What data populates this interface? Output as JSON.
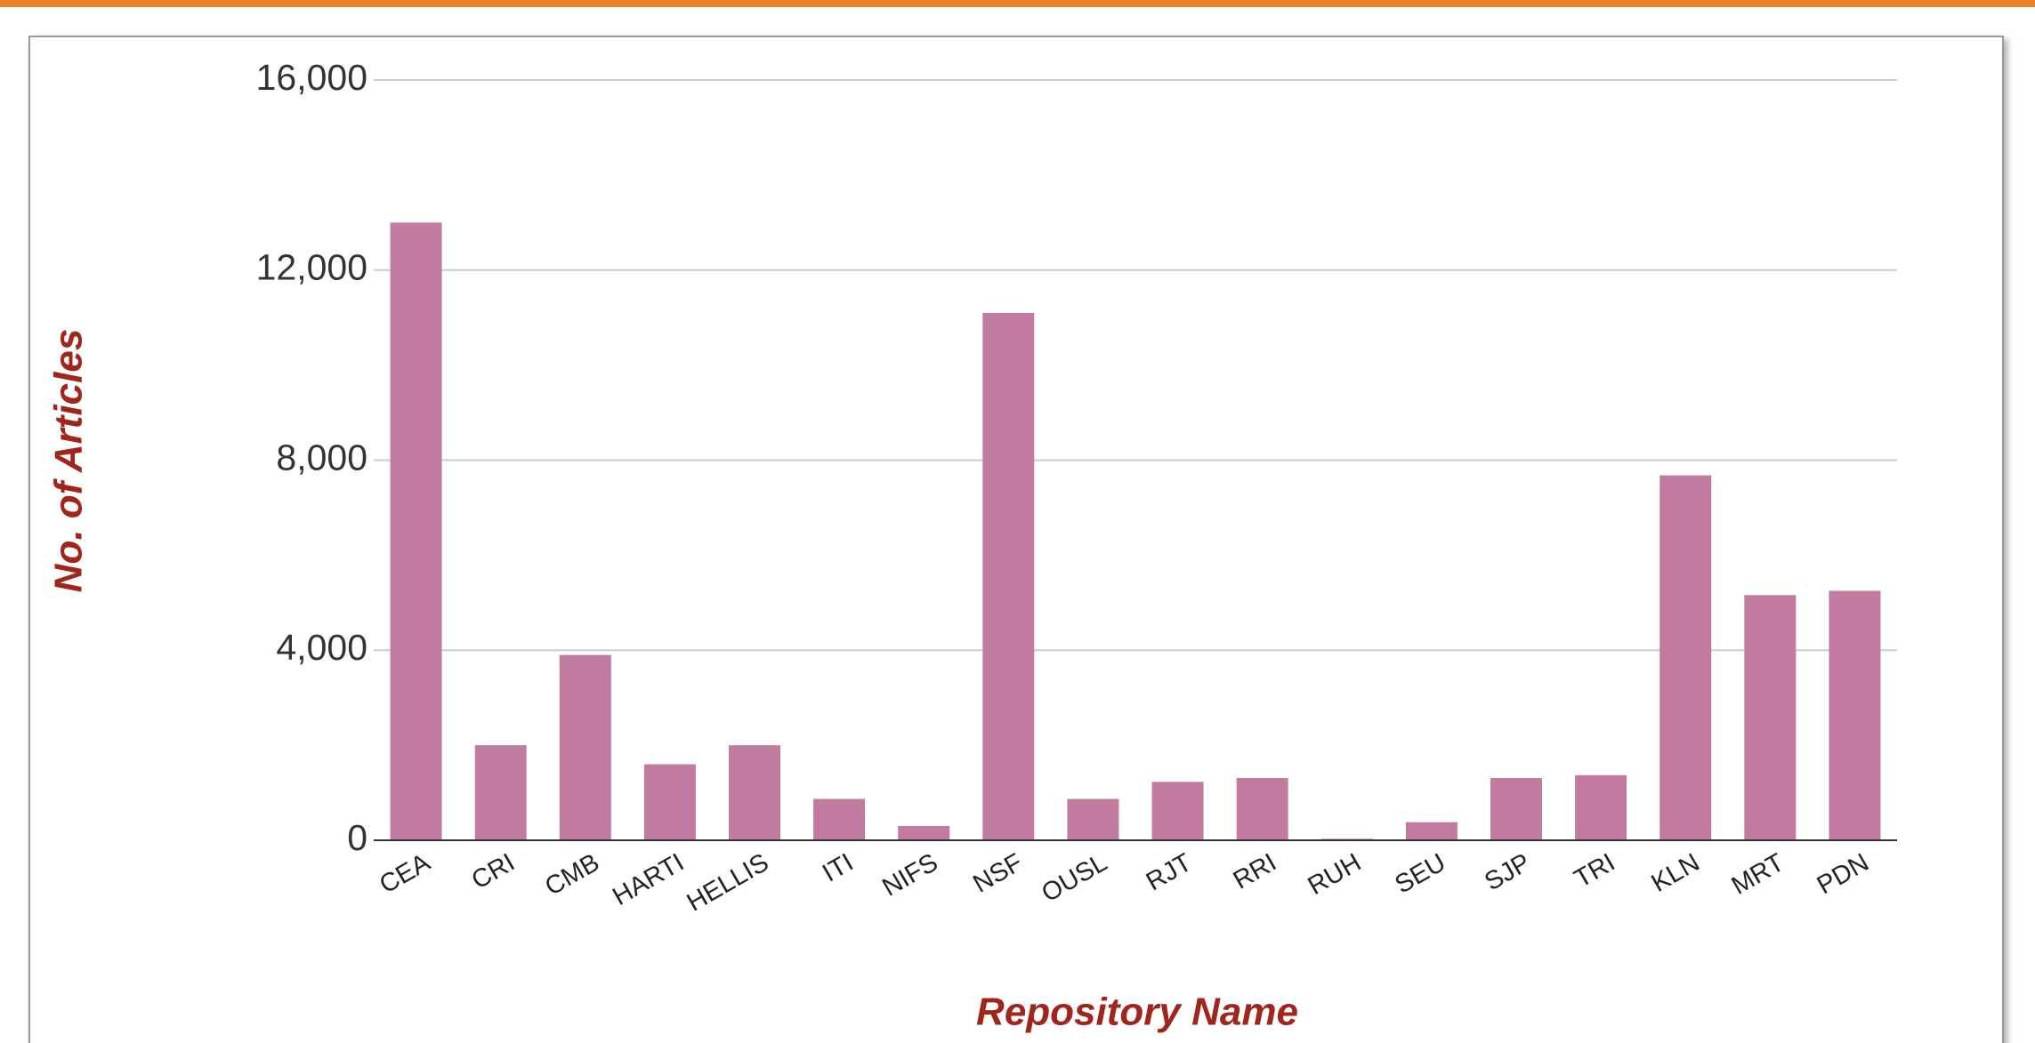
{
  "chart_data": {
    "type": "bar",
    "y_label": "No. of Articles",
    "x_label": "Repository Name",
    "categories": [
      "CEA",
      "CRI",
      "CMB",
      "HARTI",
      "HELLIS",
      "ITI",
      "NIFS",
      "NSF",
      "OUSL",
      "RJT",
      "RRI",
      "RUH",
      "SEU",
      "SJP",
      "TRI",
      "KLN",
      "MRT",
      "PDN"
    ],
    "values": [
      13000,
      2000,
      3900,
      1600,
      2000,
      870,
      300,
      11100,
      870,
      1230,
      1310,
      30,
      380,
      1310,
      1370,
      7680,
      5160,
      5250
    ],
    "color": "#c27ba0",
    "ylim": [
      0,
      16000
    ],
    "yticks": [
      0,
      {
        "value": 4000,
        "label": "4,000"
      },
      {
        "value": 8000,
        "label": "8,000"
      },
      {
        "value": 12000,
        "label": "12,000"
      },
      {
        "value": 16000,
        "label": "16,000"
      }
    ],
    "grid": true
  }
}
